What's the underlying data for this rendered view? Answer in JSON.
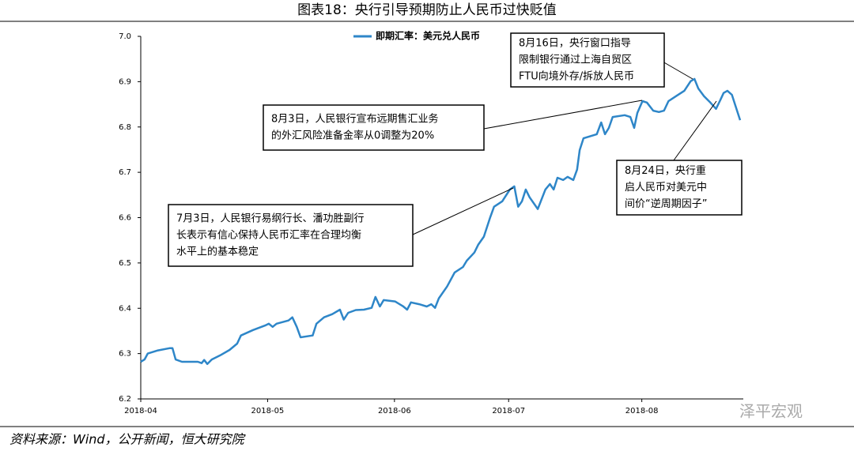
{
  "chart_data": {
    "type": "line",
    "title": "图表18：央行引导预期防止人民币过快贬值",
    "source": "资料来源：Wind，公开新闻，恒大研究院",
    "watermark": "泽平宏观",
    "xlim": [
      0,
      95
    ],
    "xticks": [
      {
        "value": 0,
        "label": "2018-04"
      },
      {
        "value": 20,
        "label": "2018-05"
      },
      {
        "value": 40,
        "label": "2018-06"
      },
      {
        "value": 58,
        "label": "2018-07"
      },
      {
        "value": 79,
        "label": "2018-08"
      }
    ],
    "ylim": [
      6.2,
      7.0
    ],
    "yticks": [
      6.2,
      6.3,
      6.4,
      6.5,
      6.6,
      6.7,
      6.8,
      6.9,
      {
        "value": 7.0,
        "label": "7.0"
      }
    ],
    "x": [
      0,
      0.6,
      1.1,
      2.7,
      4.6,
      5.0,
      5.5,
      6.5,
      9.0,
      9.6,
      10.0,
      10.5,
      11.2,
      12.5,
      14.0,
      15.2,
      15.8,
      17.7,
      19.6,
      20.2,
      20.8,
      21.4,
      23.3,
      23.9,
      24.6,
      25.2,
      27.1,
      27.7,
      28.9,
      30.2,
      31.4,
      32.0,
      32.7,
      33.9,
      35.2,
      36.4,
      37.0,
      37.7,
      38.3,
      40.1,
      41.4,
      42.0,
      42.6,
      43.9,
      45.1,
      45.8,
      46.4,
      47.0,
      48.3,
      49.5,
      50.8,
      51.4,
      52.6,
      53.2,
      54.1,
      55.1,
      55.7,
      57.0,
      58.2,
      58.9,
      59.5,
      60.1,
      60.7,
      61.3,
      62.6,
      63.8,
      64.5,
      65.1,
      65.7,
      66.6,
      67.3,
      68.2,
      68.8,
      69.2,
      69.8,
      71.9,
      72.6,
      73.2,
      73.8,
      74.4,
      76.3,
      77.2,
      77.8,
      78.3,
      79.1,
      79.8,
      80.8,
      81.7,
      82.5,
      83.2,
      84.4,
      85.7,
      86.7,
      87.3,
      87.9,
      88.8,
      89.8,
      90.7,
      91.3,
      91.9,
      92.5,
      93.2,
      93.8,
      94.5
    ],
    "series": [
      {
        "name": "即期汇率：美元兑人民币",
        "color": "#2e86c8",
        "values": [
          6.282,
          6.287,
          6.3,
          6.307,
          6.312,
          6.312,
          6.287,
          6.282,
          6.282,
          6.279,
          6.286,
          6.277,
          6.287,
          6.296,
          6.308,
          6.322,
          6.34,
          6.352,
          6.362,
          6.366,
          6.359,
          6.366,
          6.373,
          6.38,
          6.359,
          6.336,
          6.34,
          6.366,
          6.38,
          6.387,
          6.397,
          6.375,
          6.39,
          6.396,
          6.397,
          6.401,
          6.425,
          6.404,
          6.418,
          6.415,
          6.404,
          6.397,
          6.413,
          6.409,
          6.404,
          6.409,
          6.401,
          6.422,
          6.448,
          6.479,
          6.491,
          6.505,
          6.523,
          6.54,
          6.558,
          6.601,
          6.624,
          6.636,
          6.662,
          6.669,
          6.624,
          6.636,
          6.662,
          6.645,
          6.619,
          6.662,
          6.674,
          6.662,
          6.688,
          6.683,
          6.69,
          6.683,
          6.706,
          6.749,
          6.775,
          6.784,
          6.81,
          6.784,
          6.798,
          6.822,
          6.826,
          6.822,
          6.798,
          6.831,
          6.857,
          6.854,
          6.836,
          6.833,
          6.836,
          6.857,
          6.868,
          6.88,
          6.901,
          6.906,
          6.885,
          6.868,
          6.854,
          6.84,
          6.857,
          6.875,
          6.88,
          6.871,
          6.845,
          6.815
        ]
      }
    ],
    "annotations": [
      {
        "lines": [
          "8月16日，央行窗口指导",
          "限制银行通过上海自贸区",
          "FTU向境外存/拆放人民币"
        ]
      },
      {
        "lines": [
          "8月3日，人民银行宣布远期售汇业务",
          "的外汇风险准备金率从0调整为20%"
        ]
      },
      {
        "lines": [
          "7月3日，人民银行易纲行长、潘功胜副行",
          "长表示有信心保持人民币汇率在合理均衡",
          "水平上的基本稳定"
        ]
      },
      {
        "lines": [
          "8月24日，央行重",
          "启人民币对美元中",
          "间价“逆周期因子”"
        ]
      }
    ]
  }
}
